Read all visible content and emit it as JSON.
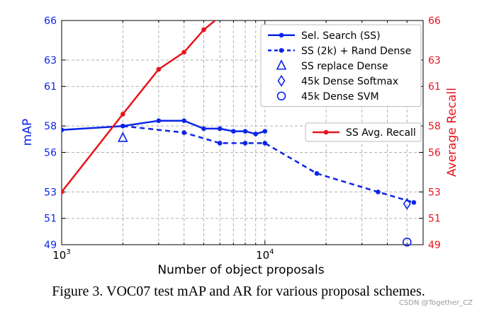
{
  "caption": "Figure 3. VOC07 test mAP and AR for various proposal schemes.",
  "watermark": "CSDN @Together_CZ",
  "chart_data": {
    "type": "line",
    "xlabel": "Number of object proposals",
    "ylabel_left": "mAP",
    "ylabel_right": "Average Recall",
    "x_scale": "log",
    "xlim": [
      1000,
      60000
    ],
    "x_ticks": [
      1000,
      10000
    ],
    "x_tick_labels": [
      {
        "base": "10",
        "exp": "3"
      },
      {
        "base": "10",
        "exp": "4"
      }
    ],
    "ylim_left": [
      49,
      66
    ],
    "ylim_right": [
      49,
      66
    ],
    "y_ticks": [
      49,
      51,
      53,
      56,
      58,
      61,
      63,
      66
    ],
    "y_tick_labels": [
      "49",
      "51",
      "53",
      "56",
      "58",
      "61",
      "63",
      "66"
    ],
    "grid": true,
    "colors": {
      "blue": "#0b24e8",
      "red": "#e8131c",
      "grid": "#b0b0b0"
    },
    "series": [
      {
        "name": "Sel. Search (SS)",
        "axis": "left",
        "style": "solid",
        "color": "#0b24e8",
        "x": [
          1000,
          2000,
          3000,
          4000,
          5000,
          6000,
          7000,
          8000,
          9000,
          10000
        ],
        "y": [
          57.7,
          58.0,
          58.4,
          58.4,
          57.8,
          57.8,
          57.6,
          57.6,
          57.4,
          57.6
        ]
      },
      {
        "name": "SS (2k) + Rand Dense",
        "axis": "left",
        "style": "dashed",
        "color": "#0b24e8",
        "x": [
          2000,
          4000,
          6000,
          8000,
          10000,
          18000,
          36000,
          54000
        ],
        "y": [
          58.0,
          57.5,
          56.7,
          56.7,
          56.7,
          54.4,
          53.0,
          52.2
        ]
      },
      {
        "name": "SS replace Dense",
        "axis": "left",
        "marker": "triangle",
        "color": "#0b24e8",
        "x": [
          2000
        ],
        "y": [
          57.1
        ]
      },
      {
        "name": "45k Dense Softmax",
        "axis": "left",
        "marker": "diamond",
        "color": "#0b24e8",
        "x": [
          50000
        ],
        "y": [
          52.1
        ]
      },
      {
        "name": "45k Dense SVM",
        "axis": "left",
        "marker": "circle",
        "color": "#0b24e8",
        "x": [
          50000
        ],
        "y": [
          49.2
        ]
      },
      {
        "name": "SS Avg. Recall",
        "axis": "right",
        "style": "solid",
        "color": "#e8131c",
        "x": [
          1000,
          2000,
          3000,
          4000,
          5000,
          6000
        ],
        "y": [
          53.0,
          58.9,
          62.3,
          63.6,
          65.3,
          66.3
        ]
      }
    ],
    "legend_top_right": [
      "Sel. Search (SS)",
      "SS (2k) + Rand Dense",
      "SS replace Dense",
      "45k Dense Softmax",
      "45k Dense SVM"
    ],
    "legend_middle_right": [
      "SS Avg. Recall"
    ]
  }
}
